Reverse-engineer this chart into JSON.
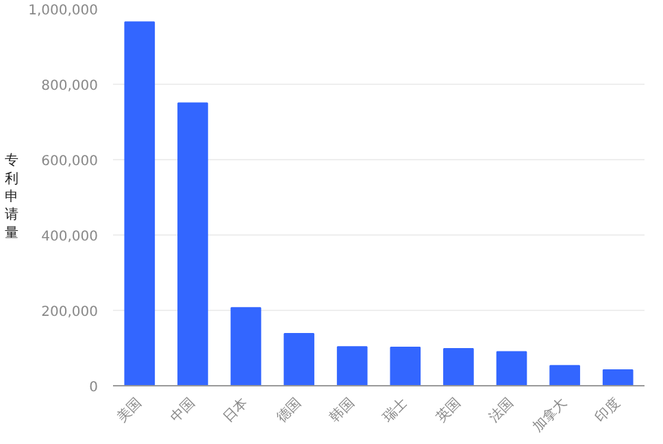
{
  "chart_data": {
    "type": "bar",
    "ylabel": "专利申请量",
    "categories": [
      "美国",
      "中国",
      "日本",
      "德国",
      "韩国",
      "瑞士",
      "英国",
      "法国",
      "加拿大",
      "印度"
    ],
    "values": [
      965000,
      750000,
      207000,
      138000,
      103000,
      102000,
      98000,
      90000,
      53000,
      42000
    ],
    "color": "#3366ff",
    "ylim": [
      0,
      1000000
    ],
    "yticks": [
      {
        "value": 0,
        "label": "0"
      },
      {
        "value": 200000,
        "label": "200,000"
      },
      {
        "value": 400000,
        "label": "400,000"
      },
      {
        "value": 600000,
        "label": "600,000"
      },
      {
        "value": 800000,
        "label": "800,000"
      },
      {
        "value": 1000000,
        "label": "1,000,000"
      }
    ],
    "grid": "y"
  }
}
